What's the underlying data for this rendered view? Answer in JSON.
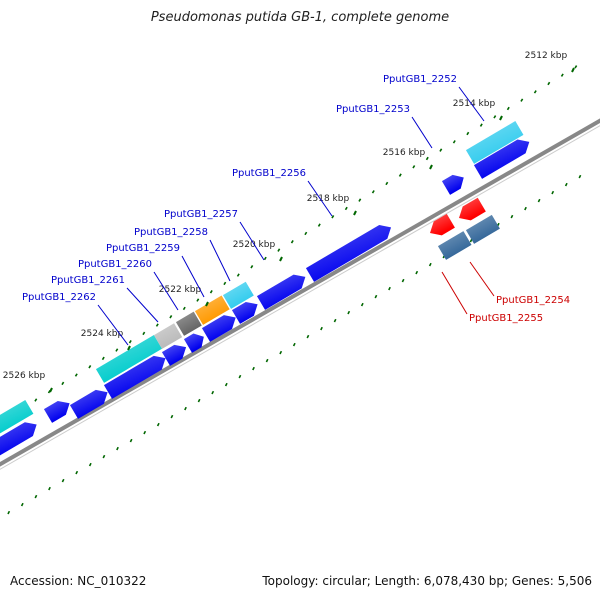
{
  "title": "Pseudomonas putida GB-1, complete genome",
  "footer": {
    "accession": "Accession: NC_010322",
    "summary": "Topology: circular; Length: 6,078,430 bp; Genes: 5,506"
  },
  "ticks": [
    {
      "label": "2512 kbp"
    },
    {
      "label": "2514 kbp"
    },
    {
      "label": "2516 kbp"
    },
    {
      "label": "2518 kbp"
    },
    {
      "label": "2520 kbp"
    },
    {
      "label": "2522 kbp"
    },
    {
      "label": "2524 kbp"
    },
    {
      "label": "2526 kbp"
    }
  ],
  "gene_labels": [
    {
      "label": "PputGB1_2252",
      "color": "#0000cc"
    },
    {
      "label": "PputGB1_2253",
      "color": "#0000cc"
    },
    {
      "label": "PputGB1_2256",
      "color": "#0000cc"
    },
    {
      "label": "PputGB1_2257",
      "color": "#0000cc"
    },
    {
      "label": "PputGB1_2258",
      "color": "#0000cc"
    },
    {
      "label": "PputGB1_2259",
      "color": "#0000cc"
    },
    {
      "label": "PputGB1_2260",
      "color": "#0000cc"
    },
    {
      "label": "PputGB1_2261",
      "color": "#0000cc"
    },
    {
      "label": "PputGB1_2262",
      "color": "#0000cc"
    },
    {
      "label": "PputGB1_2254",
      "color": "#cc0000"
    },
    {
      "label": "PputGB1_2255",
      "color": "#cc0000"
    }
  ],
  "colors": {
    "cds_forward": "#0000ee",
    "cds_reverse": "#ff0000",
    "trna": "#33ccee",
    "rrna": "#00cccc",
    "orange_feature": "#ff9900",
    "gray_feature": "#666666",
    "light_gray_feature": "#bbbbbb",
    "slate_reverse": "#336699",
    "dark_purple": "#333377",
    "backbone": "#888888",
    "tick_marks": "#006600"
  }
}
